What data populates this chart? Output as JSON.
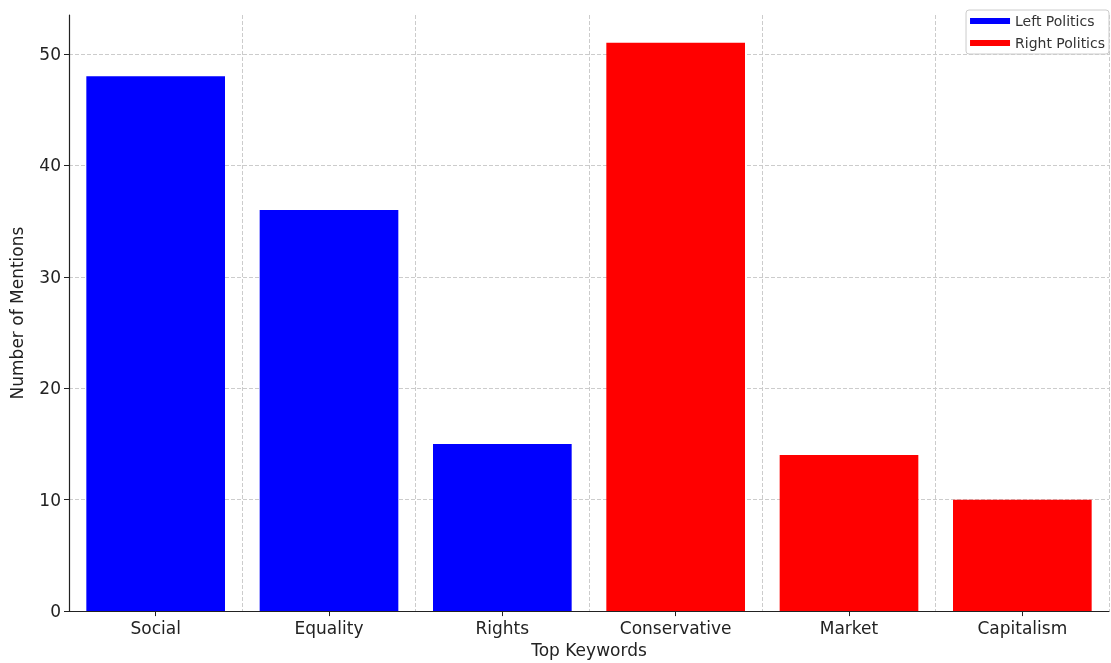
{
  "chart_data": {
    "type": "bar",
    "xlabel": "Top Keywords",
    "ylabel": "Number of Mentions",
    "categories": [
      "Social",
      "Equality",
      "Rights",
      "Conservative",
      "Market",
      "Capitalism"
    ],
    "series": [
      {
        "name": "Left Politics",
        "color": "#0000ff",
        "values": [
          48,
          36,
          15,
          null,
          null,
          null
        ]
      },
      {
        "name": "Right Politics",
        "color": "#ff0000",
        "values": [
          null,
          null,
          null,
          51,
          14,
          10
        ]
      }
    ],
    "ylim": [
      0,
      53.5
    ],
    "yticks": [
      0,
      10,
      20,
      30,
      40,
      50
    ],
    "grid": true,
    "legend": "top right"
  }
}
